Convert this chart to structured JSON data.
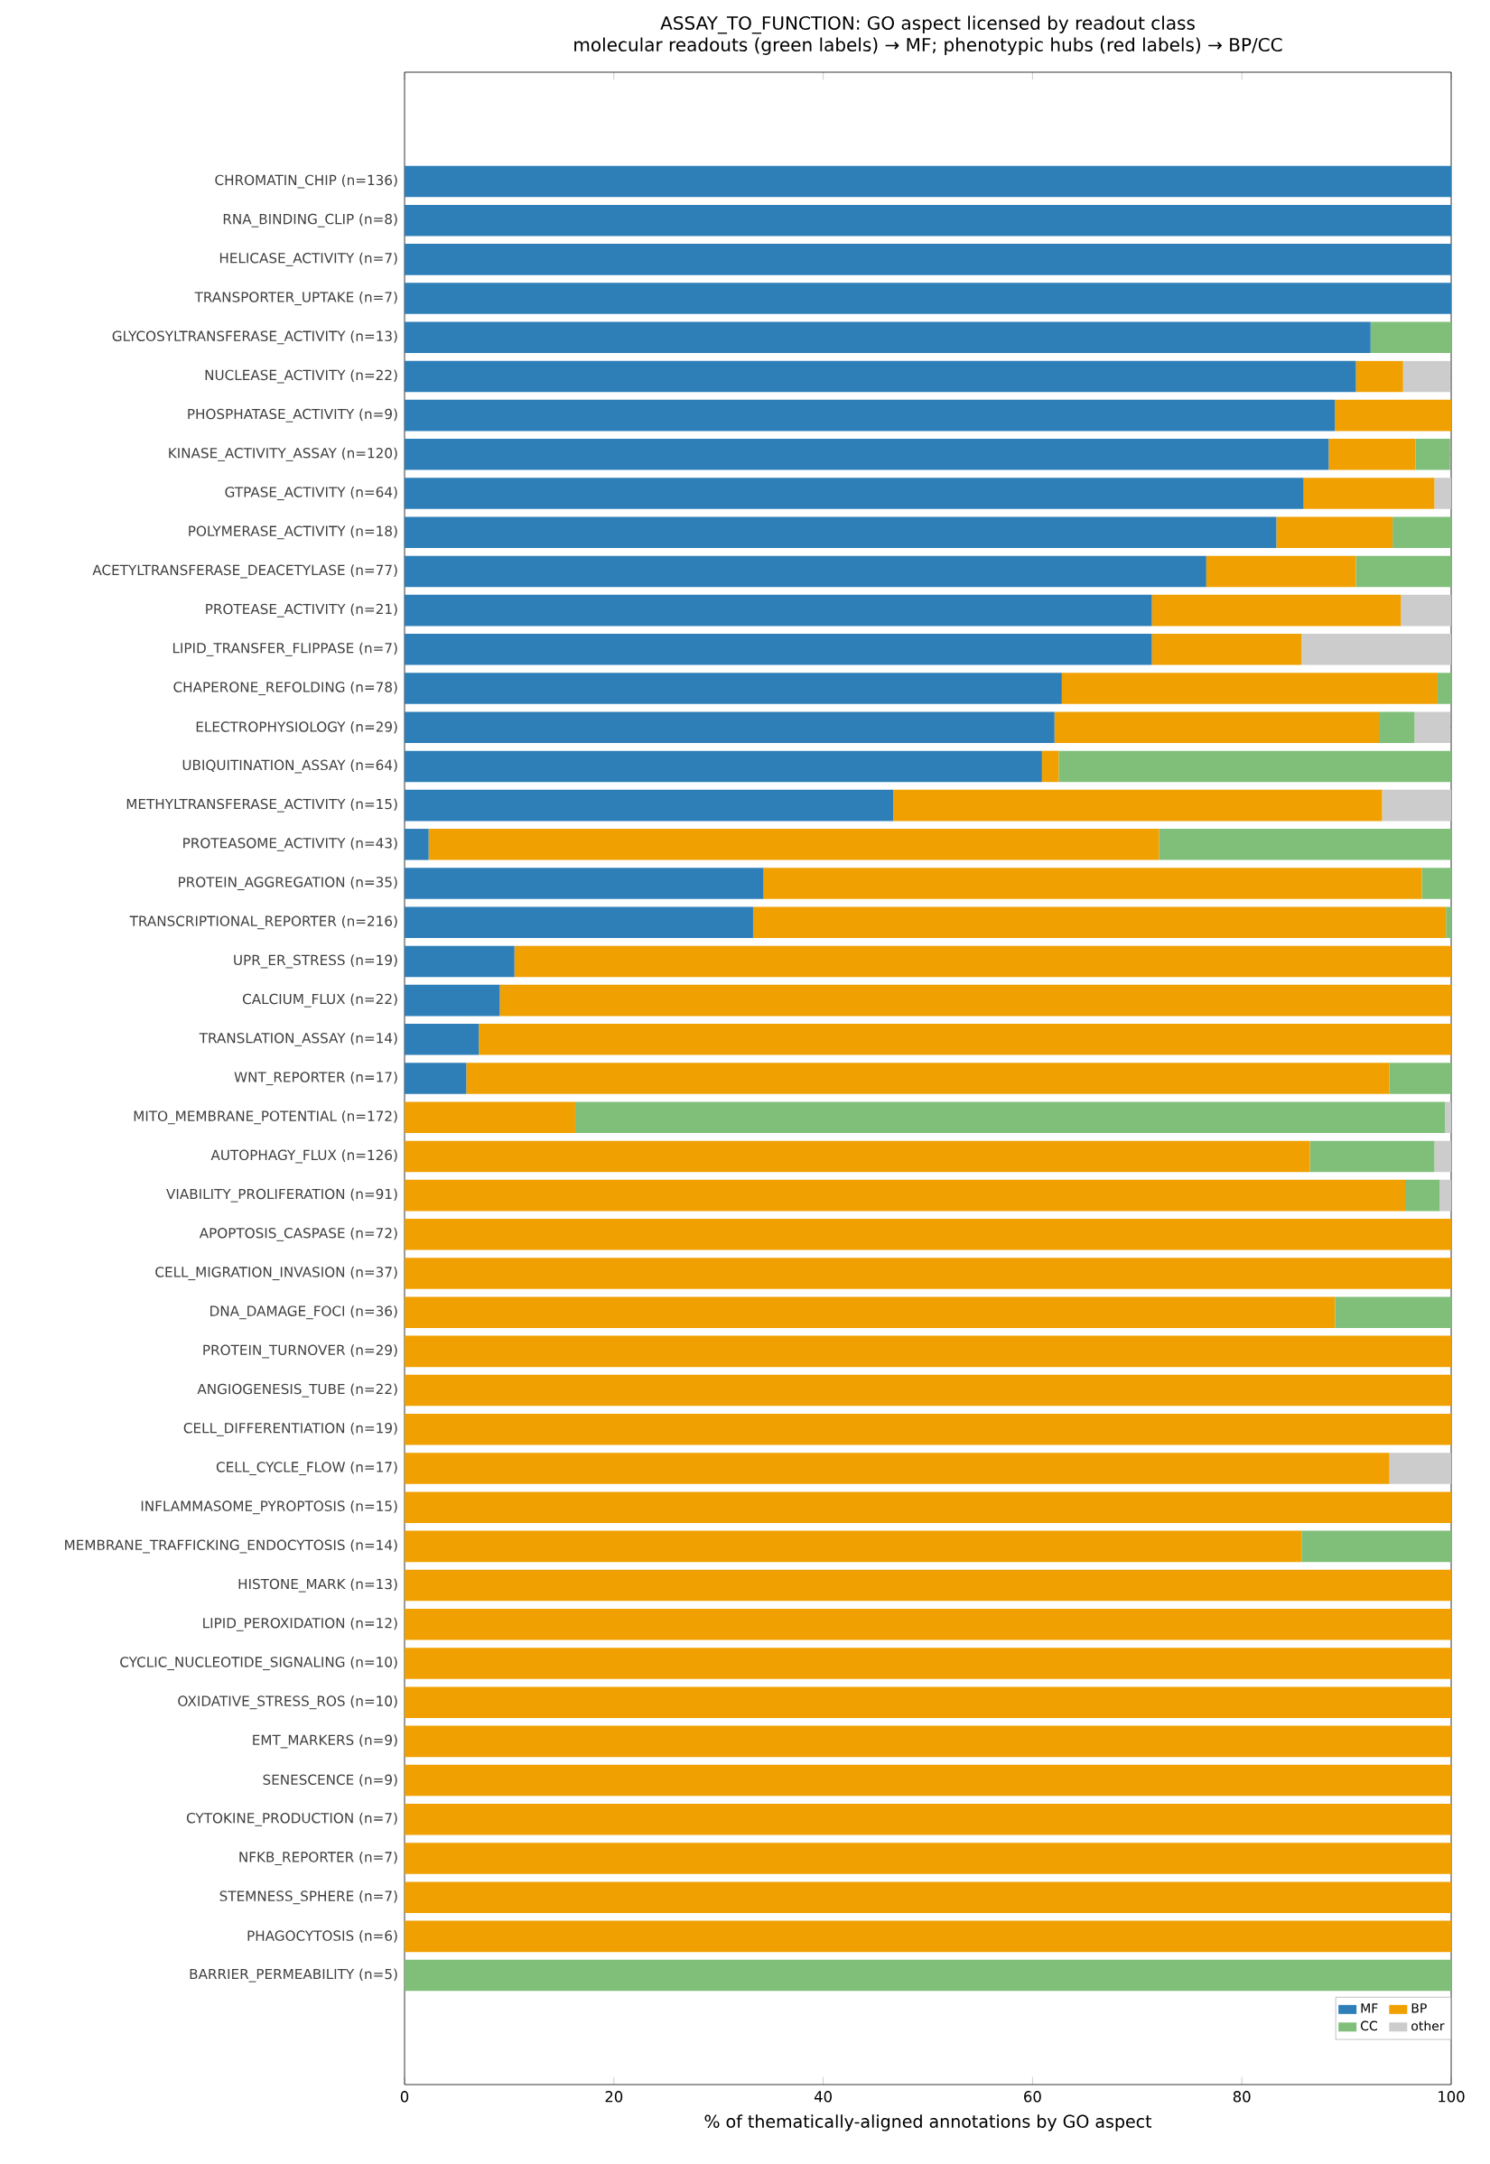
{
  "chart_data": {
    "type": "bar",
    "orientation": "horizontal",
    "stacked": true,
    "title": "ASSAY_TO_FUNCTION: GO aspect licensed by readout class",
    "subtitle": "molecular readouts (green labels) → MF; phenotypic hubs (red labels) → BP/CC",
    "xlabel": "% of thematically-aligned annotations by GO aspect",
    "categories": [
      "CHROMATIN_CHIP  (n=136)",
      "RNA_BINDING_CLIP  (n=8)",
      "HELICASE_ACTIVITY  (n=7)",
      "TRANSPORTER_UPTAKE  (n=7)",
      "GLYCOSYLTRANSFERASE_ACTIVITY  (n=13)",
      "NUCLEASE_ACTIVITY  (n=22)",
      "PHOSPHATASE_ACTIVITY  (n=9)",
      "KINASE_ACTIVITY_ASSAY  (n=120)",
      "GTPASE_ACTIVITY  (n=64)",
      "POLYMERASE_ACTIVITY  (n=18)",
      "ACETYLTRANSFERASE_DEACETYLASE  (n=77)",
      "PROTEASE_ACTIVITY  (n=21)",
      "LIPID_TRANSFER_FLIPPASE  (n=7)",
      "CHAPERONE_REFOLDING  (n=78)",
      "ELECTROPHYSIOLOGY  (n=29)",
      "UBIQUITINATION_ASSAY  (n=64)",
      "METHYLTRANSFERASE_ACTIVITY  (n=15)",
      "PROTEASOME_ACTIVITY  (n=43)",
      "PROTEIN_AGGREGATION  (n=35)",
      "TRANSCRIPTIONAL_REPORTER  (n=216)",
      "UPR_ER_STRESS  (n=19)",
      "CALCIUM_FLUX  (n=22)",
      "TRANSLATION_ASSAY  (n=14)",
      "WNT_REPORTER  (n=17)",
      "MITO_MEMBRANE_POTENTIAL  (n=172)",
      "AUTOPHAGY_FLUX  (n=126)",
      "VIABILITY_PROLIFERATION  (n=91)",
      "APOPTOSIS_CASPASE  (n=72)",
      "CELL_MIGRATION_INVASION  (n=37)",
      "DNA_DAMAGE_FOCI  (n=36)",
      "PROTEIN_TURNOVER  (n=29)",
      "ANGIOGENESIS_TUBE  (n=22)",
      "CELL_DIFFERENTIATION  (n=19)",
      "CELL_CYCLE_FLOW  (n=17)",
      "INFLAMMASOME_PYROPTOSIS  (n=15)",
      "MEMBRANE_TRAFFICKING_ENDOCYTOSIS  (n=14)",
      "HISTONE_MARK  (n=13)",
      "LIPID_PEROXIDATION  (n=12)",
      "CYCLIC_NUCLEOTIDE_SIGNALING  (n=10)",
      "OXIDATIVE_STRESS_ROS  (n=10)",
      "EMT_MARKERS  (n=9)",
      "SENESCENCE  (n=9)",
      "CYTOKINE_PRODUCTION  (n=7)",
      "NFKB_REPORTER  (n=7)",
      "STEMNESS_SPHERE  (n=7)",
      "PHAGOCYTOSIS  (n=6)",
      "BARRIER_PERMEABILITY  (n=5)"
    ],
    "series": [
      {
        "name": "MF",
        "color": "#2e7fb8",
        "values": [
          100,
          100,
          100,
          100,
          92.3,
          90.9,
          88.9,
          88.3,
          85.9,
          83.3,
          76.6,
          71.4,
          71.4,
          62.8,
          62.1,
          60.9,
          46.7,
          2.3,
          34.3,
          33.3,
          10.5,
          9.1,
          7.1,
          5.9,
          0,
          0,
          0,
          0,
          0,
          0,
          0,
          0,
          0,
          0,
          0,
          0,
          0,
          0,
          0,
          0,
          0,
          0,
          0,
          0,
          0,
          0,
          0
        ]
      },
      {
        "name": "BP",
        "color": "#f0a000",
        "values": [
          0,
          0,
          0,
          0,
          0,
          4.5,
          11.1,
          8.3,
          12.5,
          11.1,
          14.3,
          23.8,
          14.3,
          35.9,
          31.0,
          1.6,
          46.7,
          69.8,
          62.9,
          66.2,
          89.5,
          90.9,
          92.9,
          88.2,
          16.3,
          86.5,
          95.6,
          100,
          100,
          88.9,
          100,
          100,
          100,
          94.1,
          100,
          85.7,
          100,
          100,
          100,
          100,
          100,
          100,
          100,
          100,
          100,
          100,
          0
        ]
      },
      {
        "name": "CC",
        "color": "#80bf7a",
        "values": [
          0,
          0,
          0,
          0,
          7.7,
          0,
          0,
          3.3,
          0,
          5.6,
          9.1,
          0,
          0,
          1.3,
          3.4,
          37.5,
          0,
          27.9,
          2.9,
          0.5,
          0,
          0,
          0,
          5.9,
          83.1,
          11.9,
          3.3,
          0,
          0,
          11.1,
          0,
          0,
          0,
          0,
          0,
          14.3,
          0,
          0,
          0,
          0,
          0,
          0,
          0,
          0,
          0,
          0,
          100
        ]
      },
      {
        "name": "other",
        "color": "#cccccc",
        "values": [
          0,
          0,
          0,
          0,
          0,
          4.5,
          0,
          0,
          1.6,
          0,
          0,
          4.8,
          14.3,
          0,
          3.4,
          0,
          6.7,
          0,
          0,
          0,
          0,
          0,
          0,
          0,
          0.6,
          1.6,
          1.1,
          0,
          0,
          0,
          0,
          0,
          0,
          5.9,
          0,
          0,
          0,
          0,
          0,
          0,
          0,
          0,
          0,
          0,
          0,
          0,
          0
        ]
      }
    ],
    "xlim": [
      0,
      100
    ],
    "xticks": [
      0,
      20,
      40,
      60,
      80,
      100
    ],
    "legend": "bottom right",
    "grid": false
  }
}
